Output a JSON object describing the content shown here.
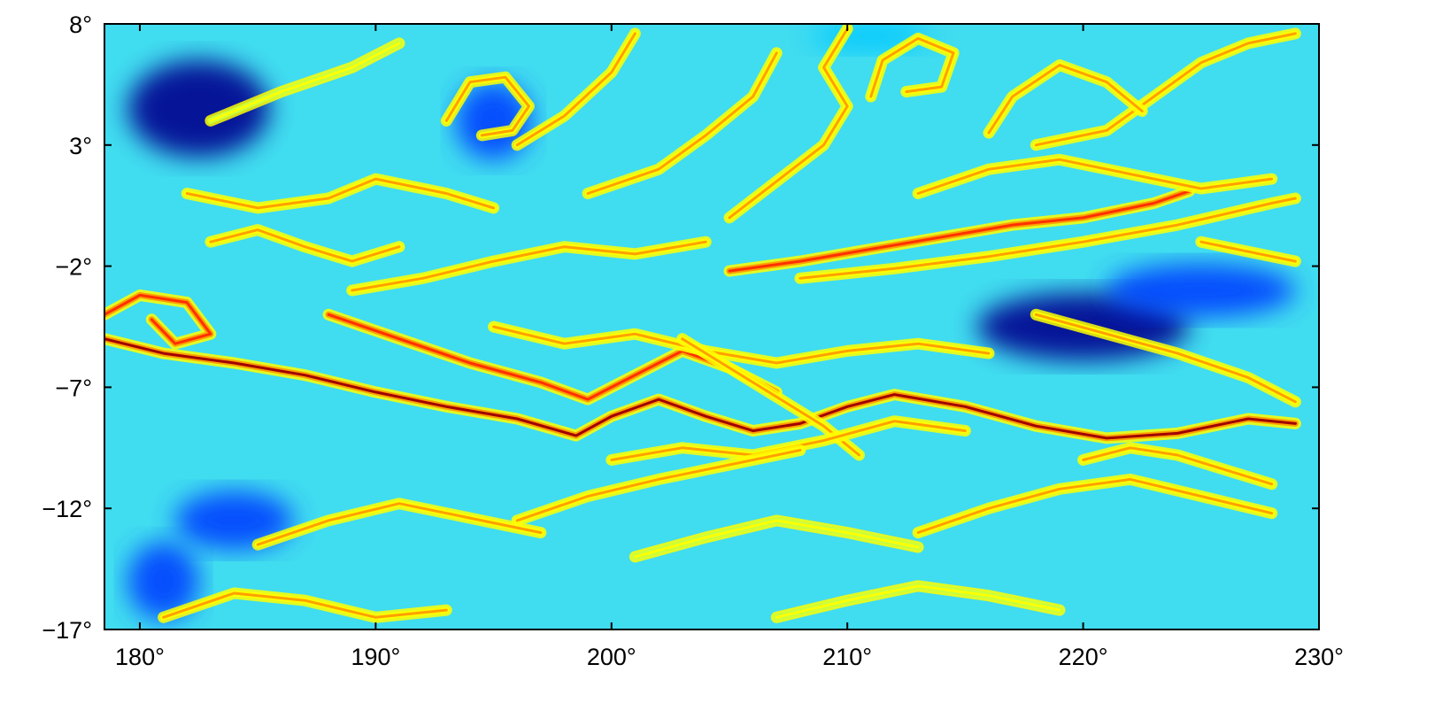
{
  "chart_data": {
    "type": "heatmap",
    "title": "",
    "xlabel": "",
    "ylabel": "",
    "xlim": [
      178.5,
      230
    ],
    "ylim": [
      -17,
      8
    ],
    "x_ticks": [
      180,
      190,
      200,
      210,
      220,
      230
    ],
    "y_ticks": [
      8,
      3,
      -2,
      -7,
      -12,
      -17
    ],
    "x_tick_labels": [
      "180°",
      "190°",
      "200°",
      "210°",
      "220°",
      "230°"
    ],
    "y_tick_labels": [
      "8°",
      "3°",
      "−2°",
      "−7°",
      "−12°",
      "−17°"
    ],
    "colormap": "jet",
    "colormap_colors": [
      "#00008f",
      "#0040ff",
      "#00c8ff",
      "#40ffd0",
      "#c8ff40",
      "#ffff00",
      "#ffa000",
      "#ff3000",
      "#a00000"
    ],
    "background_color": "#40dcf0",
    "filaments": [
      {
        "level": 0.95,
        "points": [
          [
            178.5,
            -5
          ],
          [
            181,
            -5.6
          ],
          [
            184,
            -6
          ],
          [
            187,
            -6.5
          ],
          [
            190,
            -7.2
          ],
          [
            193,
            -7.8
          ],
          [
            196,
            -8.3
          ],
          [
            198.5,
            -9
          ],
          [
            200,
            -8.2
          ],
          [
            202,
            -7.5
          ],
          [
            204,
            -8.2
          ],
          [
            206,
            -8.8
          ],
          [
            208,
            -8.5
          ],
          [
            210,
            -7.8
          ],
          [
            212,
            -7.3
          ],
          [
            215,
            -7.8
          ],
          [
            218,
            -8.6
          ],
          [
            221,
            -9.1
          ],
          [
            224,
            -8.9
          ],
          [
            227,
            -8.3
          ],
          [
            229,
            -8.5
          ]
        ]
      },
      {
        "level": 0.9,
        "points": [
          [
            178.5,
            -4
          ],
          [
            180,
            -3.2
          ],
          [
            182,
            -3.5
          ],
          [
            183,
            -4.8
          ],
          [
            181.5,
            -5.2
          ],
          [
            180.5,
            -4.2
          ]
        ]
      },
      {
        "level": 0.85,
        "points": [
          [
            205,
            -2.2
          ],
          [
            208,
            -1.8
          ],
          [
            211,
            -1.3
          ],
          [
            214,
            -0.8
          ],
          [
            217,
            -0.3
          ],
          [
            220,
            0
          ],
          [
            223,
            0.6
          ],
          [
            224.5,
            1.1
          ]
        ]
      },
      {
        "level": 0.8,
        "points": [
          [
            208,
            -2.5
          ],
          [
            212,
            -2.1
          ],
          [
            216,
            -1.6
          ],
          [
            220,
            -1
          ],
          [
            224,
            -0.3
          ],
          [
            228,
            0.6
          ],
          [
            229,
            0.8
          ]
        ]
      },
      {
        "level": 0.85,
        "points": [
          [
            188,
            -4
          ],
          [
            191,
            -5
          ],
          [
            194,
            -6
          ],
          [
            197,
            -6.8
          ],
          [
            199,
            -7.5
          ],
          [
            201,
            -6.5
          ],
          [
            203,
            -5.5
          ],
          [
            205,
            -6.2
          ],
          [
            207,
            -7.2
          ]
        ]
      },
      {
        "level": 0.75,
        "points": [
          [
            195,
            -4.5
          ],
          [
            198,
            -5.2
          ],
          [
            201,
            -4.8
          ],
          [
            204,
            -5.5
          ],
          [
            207,
            -6
          ],
          [
            210,
            -5.5
          ],
          [
            213,
            -5.2
          ],
          [
            216,
            -5.6
          ]
        ]
      },
      {
        "level": 0.8,
        "points": [
          [
            203,
            -5
          ],
          [
            205,
            -6.2
          ],
          [
            207,
            -7.4
          ],
          [
            209,
            -8.6
          ],
          [
            210.5,
            -9.8
          ]
        ]
      },
      {
        "level": 0.8,
        "points": [
          [
            200,
            -10
          ],
          [
            203,
            -9.5
          ],
          [
            206,
            -9.8
          ],
          [
            209,
            -9.2
          ],
          [
            212,
            -8.4
          ],
          [
            215,
            -8.8
          ]
        ]
      },
      {
        "level": 0.75,
        "points": [
          [
            196,
            -12.5
          ],
          [
            199,
            -11.5
          ],
          [
            202,
            -10.8
          ],
          [
            205,
            -10.2
          ],
          [
            208,
            -9.6
          ]
        ]
      },
      {
        "level": 0.7,
        "points": [
          [
            218,
            -4
          ],
          [
            221,
            -4.8
          ],
          [
            224,
            -5.6
          ],
          [
            227,
            -6.6
          ],
          [
            229,
            -7.6
          ]
        ]
      },
      {
        "level": 0.75,
        "points": [
          [
            220,
            -10
          ],
          [
            222,
            -9.5
          ],
          [
            224,
            -9.8
          ],
          [
            226,
            -10.4
          ],
          [
            228,
            -11
          ]
        ]
      },
      {
        "level": 0.7,
        "points": [
          [
            185,
            -13.5
          ],
          [
            188,
            -12.5
          ],
          [
            191,
            -11.8
          ],
          [
            194,
            -12.4
          ],
          [
            197,
            -13
          ]
        ]
      },
      {
        "level": 0.7,
        "points": [
          [
            181,
            -16.5
          ],
          [
            184,
            -15.5
          ],
          [
            187,
            -15.8
          ],
          [
            190,
            -16.5
          ],
          [
            193,
            -16.2
          ]
        ]
      },
      {
        "level": 0.8,
        "points": [
          [
            189,
            -3
          ],
          [
            192,
            -2.5
          ],
          [
            195,
            -1.8
          ],
          [
            198,
            -1.2
          ],
          [
            201,
            -1.5
          ],
          [
            204,
            -1
          ]
        ]
      },
      {
        "level": 0.75,
        "points": [
          [
            183,
            -1
          ],
          [
            185,
            -0.5
          ],
          [
            187,
            -1.2
          ],
          [
            189,
            -1.8
          ],
          [
            191,
            -1.2
          ]
        ]
      },
      {
        "level": 0.8,
        "points": [
          [
            196,
            3
          ],
          [
            198,
            4.2
          ],
          [
            200,
            6
          ],
          [
            201,
            7.6
          ]
        ]
      },
      {
        "level": 0.75,
        "points": [
          [
            199,
            1
          ],
          [
            202,
            2
          ],
          [
            204,
            3.4
          ],
          [
            206,
            5
          ],
          [
            207,
            6.8
          ]
        ]
      },
      {
        "level": 0.8,
        "points": [
          [
            211,
            5
          ],
          [
            211.5,
            6.5
          ],
          [
            213,
            7.4
          ],
          [
            214.5,
            6.8
          ],
          [
            214,
            5.4
          ],
          [
            212.5,
            5.2
          ]
        ]
      },
      {
        "level": 0.75,
        "points": [
          [
            218,
            3
          ],
          [
            221,
            3.6
          ],
          [
            223,
            5
          ],
          [
            225,
            6.4
          ],
          [
            227,
            7.2
          ],
          [
            229,
            7.6
          ]
        ]
      },
      {
        "level": 0.7,
        "points": [
          [
            213,
            1
          ],
          [
            216,
            2
          ],
          [
            219,
            2.4
          ],
          [
            222,
            1.8
          ],
          [
            225,
            1.2
          ],
          [
            228,
            1.6
          ]
        ]
      },
      {
        "level": 0.7,
        "points": [
          [
            205,
            0
          ],
          [
            207,
            1.5
          ],
          [
            209,
            3
          ],
          [
            210,
            4.6
          ],
          [
            209,
            6.2
          ],
          [
            210,
            7.8
          ]
        ]
      },
      {
        "level": 0.7,
        "points": [
          [
            182,
            1
          ],
          [
            185,
            0.4
          ],
          [
            188,
            0.8
          ],
          [
            190,
            1.6
          ],
          [
            193,
            1
          ],
          [
            195,
            0.4
          ]
        ]
      },
      {
        "level": 0.75,
        "points": [
          [
            193,
            4
          ],
          [
            194,
            5.6
          ],
          [
            195.5,
            5.8
          ],
          [
            196.5,
            4.6
          ],
          [
            195.8,
            3.6
          ],
          [
            194.5,
            3.4
          ]
        ]
      },
      {
        "level": 0.65,
        "points": [
          [
            183,
            4
          ],
          [
            186,
            5.2
          ],
          [
            189,
            6.2
          ],
          [
            191,
            7.2
          ]
        ]
      },
      {
        "level": 0.7,
        "points": [
          [
            225,
            -1
          ],
          [
            227,
            -1.4
          ],
          [
            229,
            -1.8
          ]
        ]
      },
      {
        "level": 0.7,
        "points": [
          [
            213,
            -13
          ],
          [
            216,
            -12
          ],
          [
            219,
            -11.2
          ],
          [
            222,
            -10.8
          ],
          [
            225,
            -11.5
          ],
          [
            228,
            -12.2
          ]
        ]
      },
      {
        "level": 0.65,
        "points": [
          [
            201,
            -14
          ],
          [
            204,
            -13.2
          ],
          [
            207,
            -12.5
          ],
          [
            210,
            -13
          ],
          [
            213,
            -13.6
          ]
        ]
      },
      {
        "level": 0.65,
        "points": [
          [
            207,
            -16.5
          ],
          [
            210,
            -15.8
          ],
          [
            213,
            -15.2
          ],
          [
            216,
            -15.6
          ],
          [
            219,
            -16.2
          ]
        ]
      },
      {
        "level": 0.7,
        "points": [
          [
            216,
            3.5
          ],
          [
            217,
            5
          ],
          [
            219,
            6.3
          ],
          [
            221,
            5.6
          ],
          [
            222.5,
            4.4
          ]
        ]
      }
    ],
    "cold_regions": [
      {
        "level": 0.05,
        "center": [
          182.5,
          4.5
        ],
        "radius": [
          3.0,
          2.0
        ]
      },
      {
        "level": 0.03,
        "center": [
          220,
          -4.5
        ],
        "radius": [
          4.5,
          1.4
        ]
      },
      {
        "level": 0.15,
        "center": [
          225,
          -3.0
        ],
        "radius": [
          4.0,
          1.1
        ]
      },
      {
        "level": 0.1,
        "center": [
          195,
          4.0
        ],
        "radius": [
          1.6,
          1.6
        ]
      },
      {
        "level": 0.1,
        "center": [
          184,
          -12.5
        ],
        "radius": [
          2.5,
          1.2
        ]
      },
      {
        "level": 0.12,
        "center": [
          181,
          -15.0
        ],
        "radius": [
          1.5,
          1.6
        ]
      },
      {
        "level": 0.2,
        "center": [
          211,
          7.5
        ],
        "radius": [
          2.5,
          0.6
        ]
      }
    ]
  }
}
